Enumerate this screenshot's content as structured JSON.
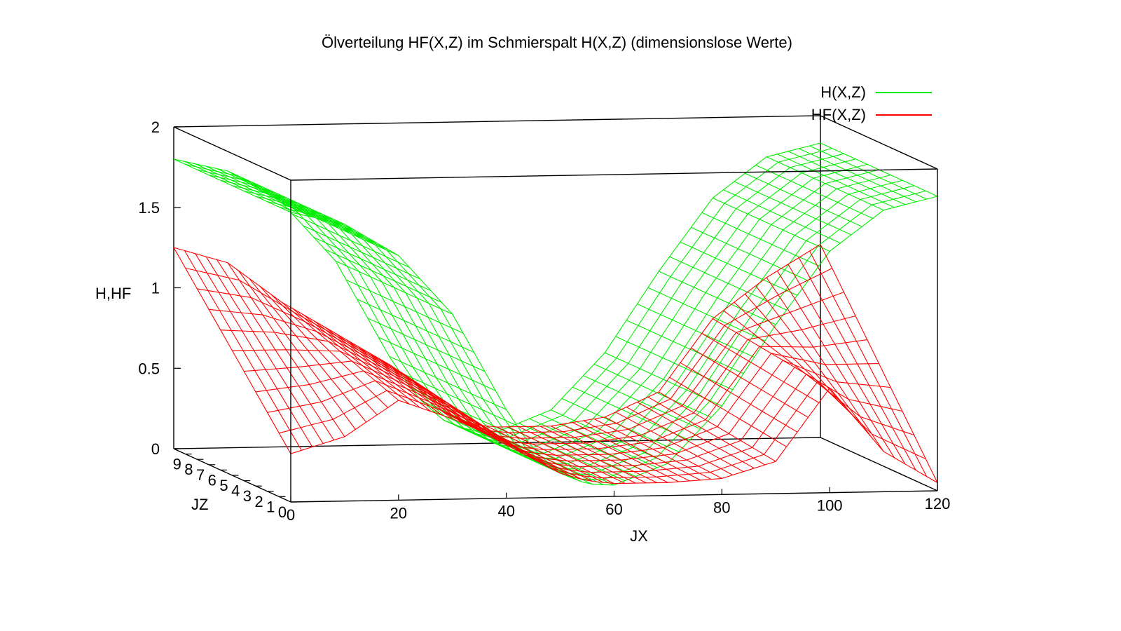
{
  "chart_data": {
    "type": "surface3d",
    "title": "Ölverteilung HF(X,Z) im Schmierspalt H(X,Z) (dimensionslose Werte)",
    "xlabel": "JX",
    "ylabel": "JZ",
    "zlabel": "H,HF",
    "x_ticks": [
      "0",
      "20",
      "40",
      "60",
      "80",
      "100",
      "120"
    ],
    "y_ticks": [
      "0",
      "1",
      "2",
      "3",
      "4",
      "5",
      "6",
      "7",
      "8",
      "9"
    ],
    "z_ticks": [
      "0",
      "0.5",
      "1",
      "1.5",
      "2"
    ],
    "xlim": [
      0,
      120
    ],
    "ylim": [
      0,
      10
    ],
    "zlim": [
      0,
      2
    ],
    "legend_position": "top-right",
    "series": [
      {
        "name": "H(X,Z)",
        "color": "#00ee00",
        "x": [
          0,
          10,
          20,
          30,
          40,
          45,
          50,
          55,
          60,
          70,
          80,
          90,
          100,
          110,
          120
        ],
        "values_front_JZ0": [
          1.8,
          1.72,
          1.52,
          1.15,
          0.55,
          0.3,
          0.15,
          0.08,
          0.07,
          0.2,
          0.55,
          1.05,
          1.5,
          1.75,
          1.83
        ],
        "values_back_JZ10": [
          1.8,
          1.72,
          1.52,
          1.15,
          0.55,
          0.3,
          0.15,
          0.08,
          0.07,
          0.2,
          0.55,
          1.05,
          1.5,
          1.75,
          1.83
        ]
      },
      {
        "name": "HF(X,Z)",
        "color": "#ff0000",
        "x": [
          0,
          10,
          20,
          30,
          40,
          45,
          50,
          55,
          60,
          70,
          80,
          90,
          100,
          110,
          120
        ],
        "values_front_JZ0": [
          0.3,
          0.4,
          0.62,
          0.5,
          0.35,
          0.25,
          0.15,
          0.1,
          0.08,
          0.08,
          0.1,
          0.2,
          0.65,
          0.25,
          0.05
        ],
        "values_back_JZ10": [
          1.25,
          1.15,
          0.9,
          0.7,
          0.5,
          0.38,
          0.2,
          0.12,
          0.1,
          0.1,
          0.15,
          0.3,
          0.75,
          1.0,
          1.2
        ]
      }
    ]
  }
}
